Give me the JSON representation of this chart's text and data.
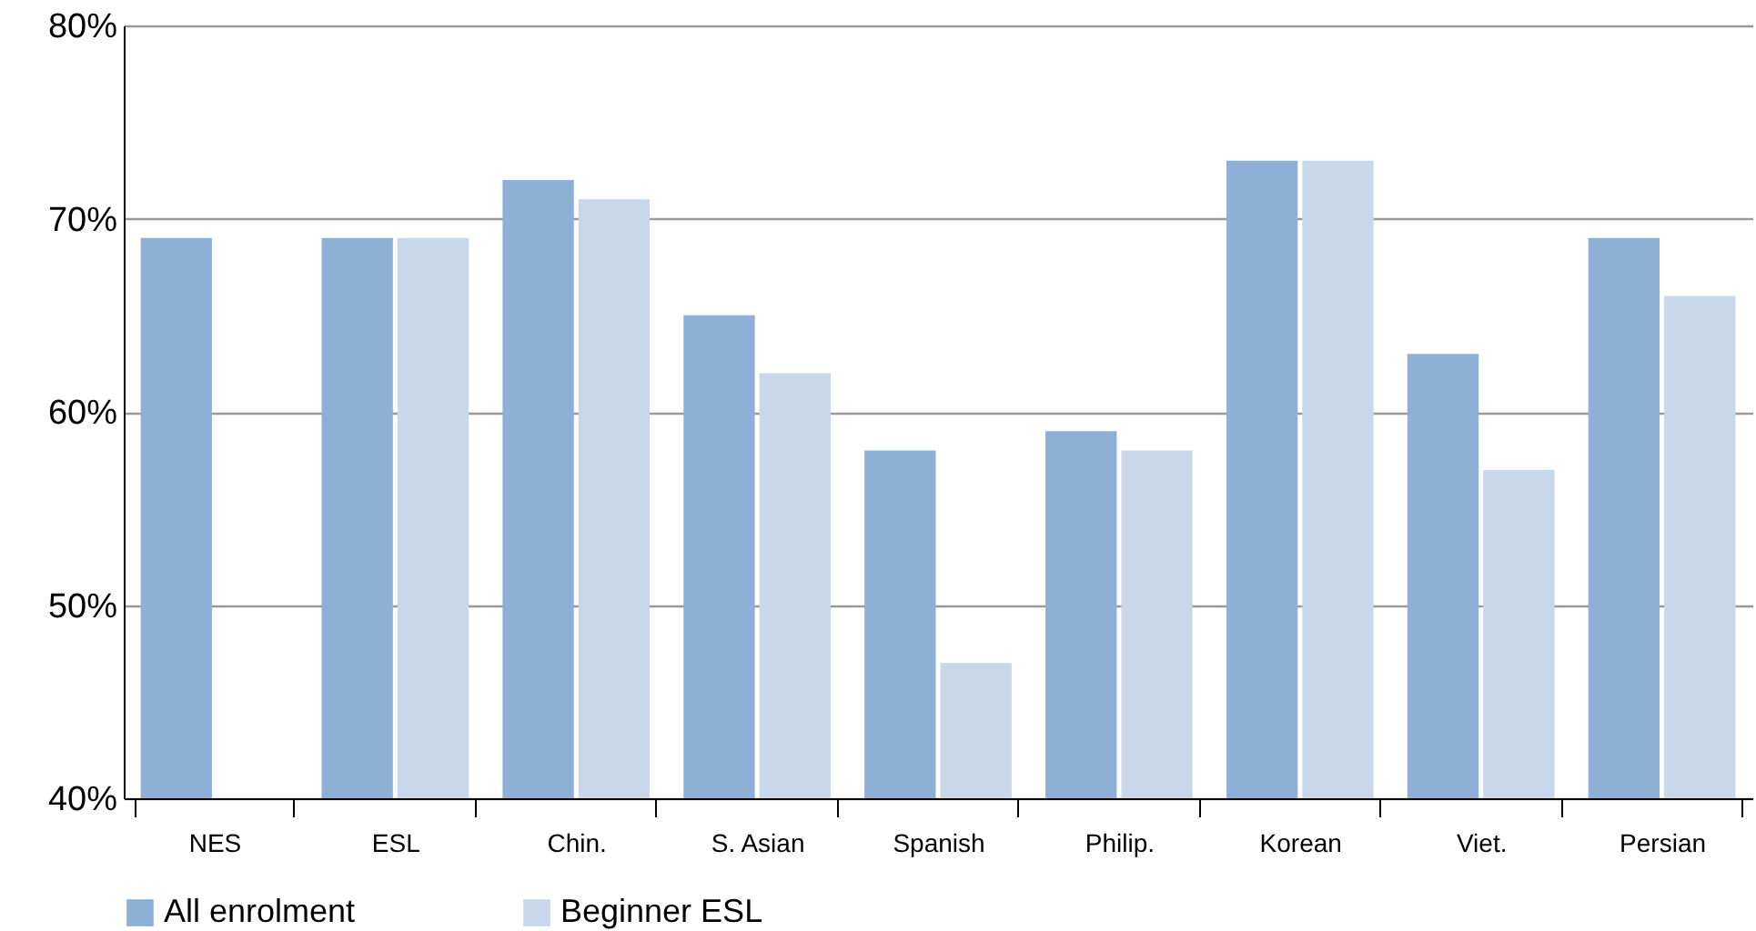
{
  "chart_data": {
    "type": "bar",
    "categories": [
      "NES",
      "ESL",
      "Chin.",
      "S. Asian",
      "Spanish",
      "Philip.",
      "Korean",
      "Viet.",
      "Persian"
    ],
    "series": [
      {
        "name": "All enrolment",
        "color": "#8fb0d6",
        "values": [
          69,
          69,
          72,
          65,
          58,
          59,
          73,
          63,
          69
        ]
      },
      {
        "name": "Beginner ESL",
        "color": "#c9d7ea",
        "values": [
          null,
          69,
          71,
          62,
          47,
          58,
          73,
          57,
          66
        ]
      }
    ],
    "ylim": [
      40,
      80
    ],
    "yticks": [
      {
        "value": 40,
        "label": "40%"
      },
      {
        "value": 50,
        "label": "50%"
      },
      {
        "value": 60,
        "label": "60%"
      },
      {
        "value": 70,
        "label": "70%"
      },
      {
        "value": 80,
        "label": "80%"
      }
    ],
    "grid": "y",
    "legend": "bottom"
  }
}
